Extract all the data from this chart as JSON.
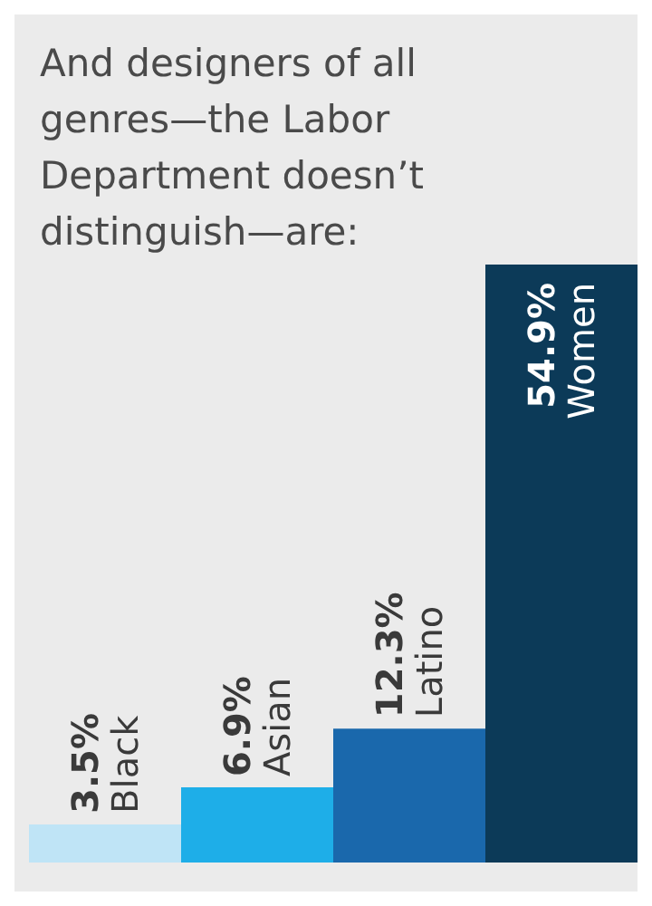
{
  "chart_data": {
    "type": "bar",
    "title": "And designers of all genres—the Labor Department doesn’t distinguish—are:",
    "categories": [
      "Black",
      "Asian",
      "Latino",
      "Women"
    ],
    "values": [
      3.5,
      6.9,
      12.3,
      54.9
    ],
    "value_labels": [
      "3.5%",
      "6.9%",
      "12.3%",
      "54.9%"
    ],
    "colors": [
      "#bfe4f6",
      "#1eaee8",
      "#1a68ac",
      "#0c3a58"
    ]
  }
}
